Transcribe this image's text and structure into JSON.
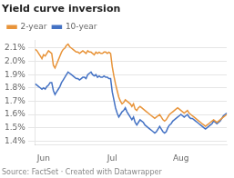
{
  "chart_data": {
    "type": "line",
    "title": "Yield curve inversion",
    "subtitle": "Source: FactSet · Created with Datawrapper",
    "categories": [
      null,
      null,
      null,
      null,
      null,
      "Jun",
      null,
      null,
      null,
      null,
      null,
      null,
      null,
      null,
      null,
      null,
      null,
      null,
      null,
      null,
      null,
      null,
      null,
      null,
      null,
      null,
      null,
      null,
      null,
      null,
      null,
      null,
      null,
      null,
      null,
      null,
      null,
      null,
      null,
      null,
      null,
      null,
      null,
      null,
      null,
      null,
      null,
      "Jul",
      null,
      null,
      null,
      null,
      null,
      null,
      null,
      null,
      null,
      null,
      null,
      null,
      null,
      null,
      null,
      null,
      null,
      null,
      null,
      null,
      null,
      null,
      null,
      null,
      null,
      null,
      null,
      null,
      null,
      null,
      null,
      null,
      null,
      null,
      null,
      null,
      null,
      null,
      null,
      null,
      null,
      "Aug",
      null,
      null,
      null,
      null,
      null,
      null,
      null,
      null,
      null,
      null,
      null,
      null,
      null,
      null,
      null,
      null,
      null,
      null,
      null,
      null,
      null,
      null,
      null,
      null,
      null,
      null,
      null,
      null
    ],
    "series": [
      {
        "name": "2-year",
        "color": "#e8943a",
        "values": [
          2.09,
          2.08,
          2.06,
          2.04,
          2.02,
          2.05,
          2.04,
          2.06,
          2.08,
          2.07,
          2.06,
          1.97,
          1.95,
          1.98,
          2.01,
          2.04,
          2.07,
          2.09,
          2.1,
          2.12,
          2.13,
          2.11,
          2.1,
          2.09,
          2.08,
          2.07,
          2.07,
          2.06,
          2.07,
          2.08,
          2.07,
          2.06,
          2.08,
          2.07,
          2.07,
          2.06,
          2.05,
          2.07,
          2.06,
          2.07,
          2.06,
          2.06,
          2.07,
          2.07,
          2.06,
          2.07,
          2.06,
          1.96,
          1.89,
          1.83,
          1.78,
          1.73,
          1.7,
          1.68,
          1.69,
          1.71,
          1.7,
          1.69,
          1.68,
          1.66,
          1.68,
          1.64,
          1.63,
          1.65,
          1.66,
          1.65,
          1.64,
          1.63,
          1.62,
          1.61,
          1.6,
          1.59,
          1.58,
          1.57,
          1.58,
          1.59,
          1.6,
          1.58,
          1.56,
          1.55,
          1.56,
          1.58,
          1.6,
          1.61,
          1.62,
          1.63,
          1.64,
          1.65,
          1.64,
          1.63,
          1.62,
          1.61,
          1.62,
          1.63,
          1.61,
          1.6,
          1.59,
          1.58,
          1.57,
          1.56,
          1.55,
          1.54,
          1.53,
          1.52,
          1.51,
          1.52,
          1.53,
          1.54,
          1.55,
          1.56,
          1.55,
          1.54,
          1.55,
          1.56,
          1.57,
          1.58,
          1.59,
          1.6
        ]
      },
      {
        "name": "10-year",
        "color": "#4472c4",
        "values": [
          1.83,
          1.82,
          1.81,
          1.8,
          1.79,
          1.8,
          1.79,
          1.81,
          1.82,
          1.84,
          1.84,
          1.78,
          1.75,
          1.77,
          1.79,
          1.81,
          1.84,
          1.86,
          1.88,
          1.9,
          1.92,
          1.91,
          1.9,
          1.89,
          1.88,
          1.87,
          1.87,
          1.86,
          1.87,
          1.88,
          1.88,
          1.87,
          1.9,
          1.91,
          1.92,
          1.9,
          1.89,
          1.9,
          1.88,
          1.89,
          1.88,
          1.88,
          1.89,
          1.88,
          1.88,
          1.87,
          1.87,
          1.77,
          1.71,
          1.65,
          1.61,
          1.58,
          1.6,
          1.62,
          1.63,
          1.65,
          1.62,
          1.6,
          1.58,
          1.56,
          1.58,
          1.54,
          1.52,
          1.54,
          1.56,
          1.55,
          1.54,
          1.52,
          1.51,
          1.5,
          1.49,
          1.48,
          1.47,
          1.46,
          1.47,
          1.49,
          1.51,
          1.49,
          1.47,
          1.46,
          1.47,
          1.5,
          1.52,
          1.53,
          1.55,
          1.56,
          1.57,
          1.58,
          1.59,
          1.6,
          1.59,
          1.58,
          1.59,
          1.6,
          1.58,
          1.57,
          1.57,
          1.56,
          1.55,
          1.54,
          1.53,
          1.52,
          1.51,
          1.5,
          1.49,
          1.5,
          1.51,
          1.52,
          1.53,
          1.55,
          1.54,
          1.53,
          1.54,
          1.55,
          1.57,
          1.59,
          1.6,
          1.61
        ]
      }
    ],
    "ylim": [
      1.37,
      2.16
    ],
    "yticks": [
      {
        "value": 1.4,
        "label": "1.4%"
      },
      {
        "value": 1.5,
        "label": "1.5%"
      },
      {
        "value": 1.6,
        "label": "1.6%"
      },
      {
        "value": 1.7,
        "label": "1.7%"
      },
      {
        "value": 1.8,
        "label": "1.8%"
      },
      {
        "value": 1.9,
        "label": "1.9%"
      },
      {
        "value": 2.0,
        "label": "2.0%"
      },
      {
        "value": 2.1,
        "label": "2.1%"
      }
    ],
    "grid": "y",
    "legend": "top"
  }
}
